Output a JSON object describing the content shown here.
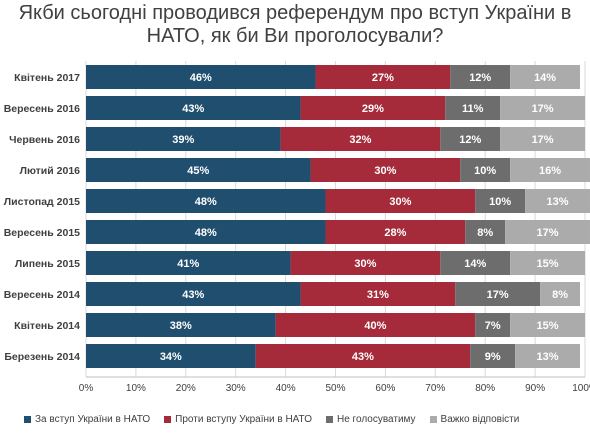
{
  "chart_data": {
    "type": "bar",
    "orientation": "horizontal",
    "stacked": true,
    "title": "Якби сьогодні проводився референдум про вступ України в НАТО, як би Ви проголосували?",
    "categories": [
      "Квітень 2017",
      "Вересень 2016",
      "Червень 2016",
      "Лютий 2016",
      "Листопад 2015",
      "Вересень 2015",
      "Липень 2015",
      "Вересень 2014",
      "Квітень 2014",
      "Березень 2014"
    ],
    "series": [
      {
        "name": "За вступ України в НАТО",
        "color": "#1f4e6e",
        "values": [
          46,
          43,
          39,
          45,
          48,
          48,
          41,
          43,
          38,
          34
        ]
      },
      {
        "name": "Проти вступу України в НАТО",
        "color": "#a52a3a",
        "values": [
          27,
          29,
          32,
          30,
          30,
          28,
          30,
          31,
          40,
          43
        ]
      },
      {
        "name": "Не голосуватиму",
        "color": "#6d6d6d",
        "values": [
          12,
          11,
          12,
          10,
          10,
          8,
          14,
          17,
          7,
          9
        ]
      },
      {
        "name": "Важко відповісти",
        "color": "#ababab",
        "values": [
          14,
          17,
          17,
          16,
          13,
          17,
          15,
          8,
          15,
          13
        ]
      }
    ],
    "xlim": [
      0,
      100
    ],
    "x_ticks": [
      "0%",
      "10%",
      "20%",
      "30%",
      "40%",
      "50%",
      "60%",
      "70%",
      "80%",
      "90%",
      "100%"
    ],
    "value_suffix": "%",
    "grid": true,
    "legend_position": "bottom"
  }
}
